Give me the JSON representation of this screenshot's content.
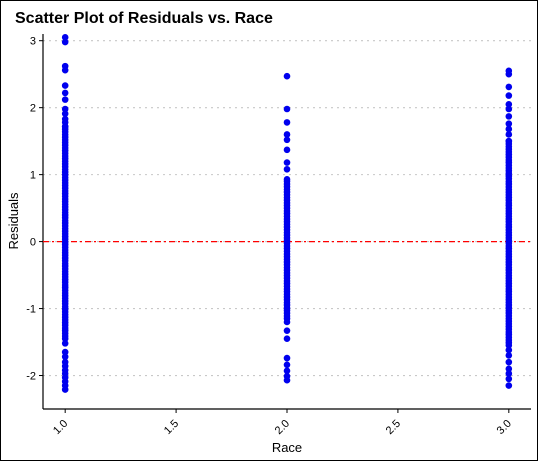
{
  "chart_data": {
    "type": "scatter",
    "title": "Scatter Plot of Residuals vs. Race",
    "xlabel": "Race",
    "ylabel": "Residuals",
    "xlim": [
      0.9,
      3.1
    ],
    "ylim": [
      -2.5,
      3.1
    ],
    "xticks": [
      "1.0",
      "1.5",
      "2.0",
      "2.5",
      "3.0"
    ],
    "xtick_values": [
      1.0,
      1.5,
      2.0,
      2.5,
      3.0
    ],
    "xtick_rotation": 45,
    "yticks": [
      "-2",
      "-1",
      "0",
      "1",
      "2",
      "3"
    ],
    "ytick_values": [
      -2,
      -1,
      0,
      1,
      2,
      3
    ],
    "grid": "horizontal dotted",
    "reference_line": {
      "y": 0,
      "style": "dashed",
      "color": "#ff0000"
    },
    "point_color": "#0000ee",
    "series": [
      {
        "x": 1.0,
        "y": [
          3.05,
          2.98,
          2.62,
          2.56,
          2.33,
          2.22,
          2.12,
          1.98,
          1.91,
          1.83,
          1.78,
          1.72,
          -1.52,
          -1.65,
          -1.72,
          -1.8,
          -1.86,
          -1.92,
          -1.97,
          -2.03,
          -2.09,
          -2.15,
          -2.21
        ]
      },
      {
        "x": 2.0,
        "y": [
          2.47,
          1.98,
          1.78,
          1.6,
          1.52,
          1.37,
          1.18,
          1.08,
          0.93,
          -1.2,
          -1.33,
          -1.45,
          -1.74,
          -1.84,
          -1.93,
          -2.01,
          -2.07
        ]
      },
      {
        "x": 3.0,
        "y": [
          2.55,
          2.5,
          2.31,
          2.18,
          2.05,
          1.98,
          1.87,
          1.76,
          1.68,
          1.6,
          1.5,
          -1.62,
          -1.7,
          -1.8,
          -1.9,
          -1.97,
          -2.05,
          -2.15
        ]
      }
    ],
    "dense_range": [
      {
        "x": 1.0,
        "from": -1.45,
        "to": 1.72
      },
      {
        "x": 2.0,
        "from": -1.15,
        "to": 0.9
      },
      {
        "x": 3.0,
        "from": -1.55,
        "to": 1.5
      }
    ]
  }
}
